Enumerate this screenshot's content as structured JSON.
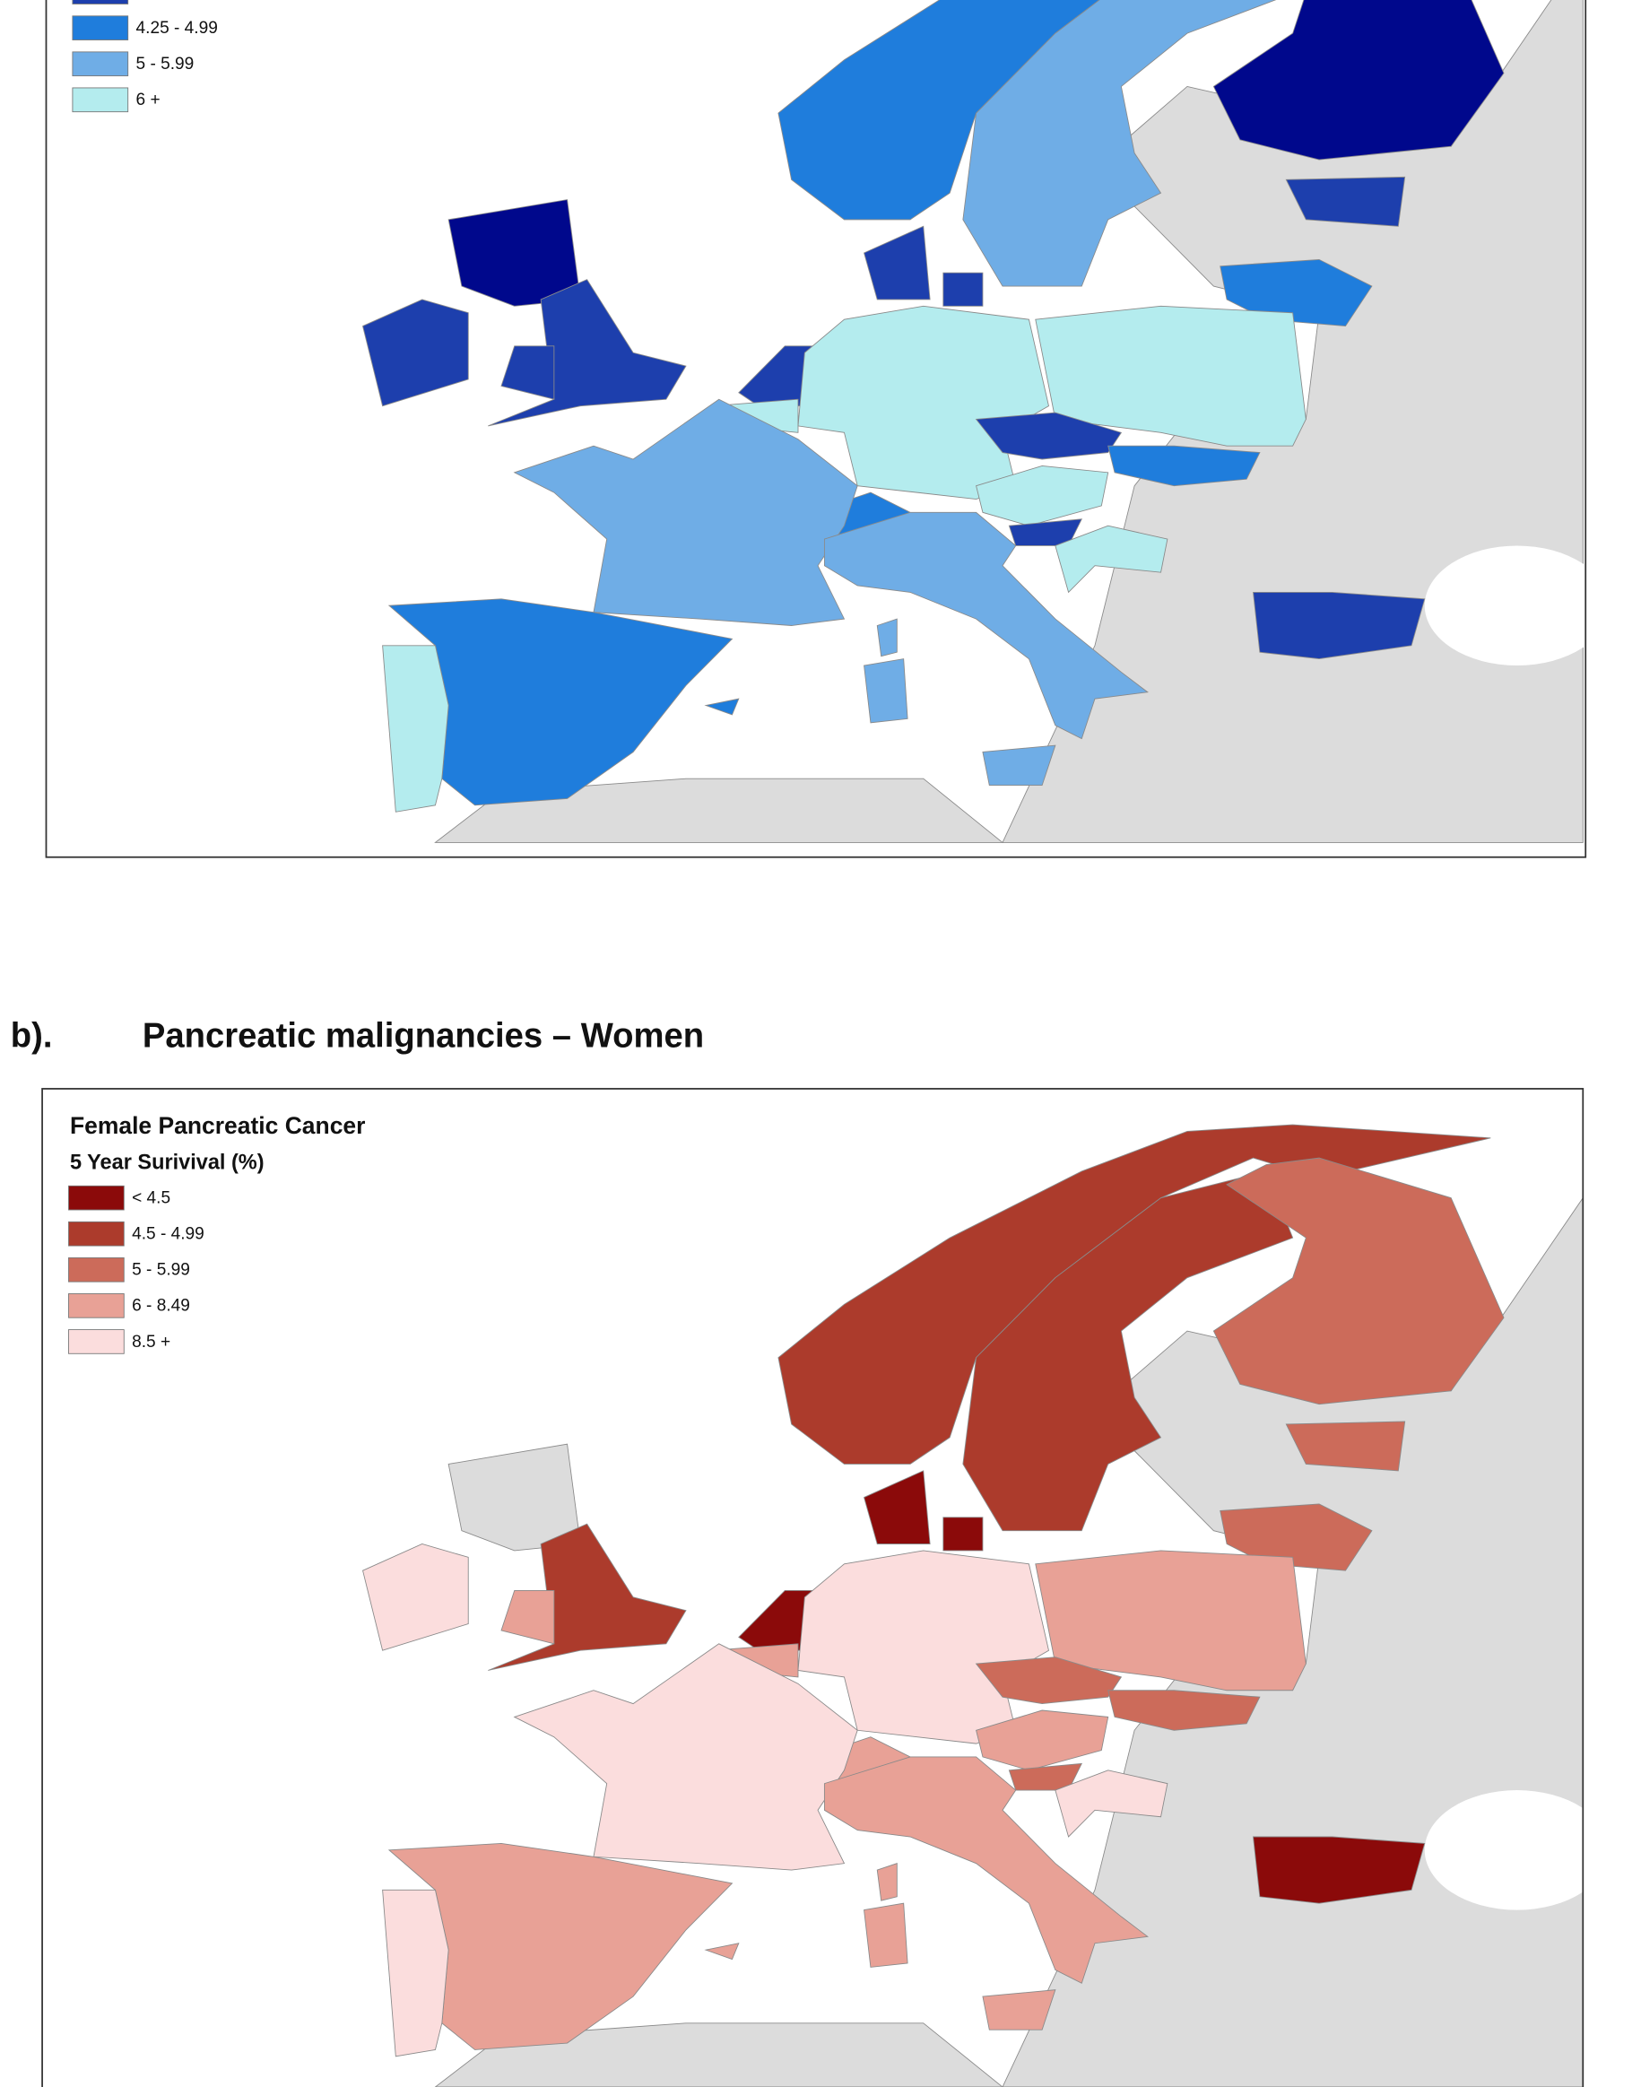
{
  "top_legend": {
    "items": [
      {
        "color": "#1d3fad"
      },
      {
        "label": "4.25 - 4.99",
        "color": "#1f7ddc"
      },
      {
        "label": "5 - 5.99",
        "color": "#6fade6"
      },
      {
        "label": "6 +",
        "color": "#b4ecee"
      }
    ]
  },
  "heading": {
    "number": "b).",
    "title": "Pancreatic malignancies – Women"
  },
  "bottom_legend": {
    "title": "Female Pancreatic Cancer",
    "subtitle": "5 Year Surivival (%)",
    "items": [
      {
        "label": "< 4.5",
        "color": "#8b0a0a"
      },
      {
        "label": "4.5 - 4.99",
        "color": "#ac3b2c"
      },
      {
        "label": "5 - 5.99",
        "color": "#cc6b5a"
      },
      {
        "label": "6 - 8.49",
        "color": "#e8a196"
      },
      {
        "label": "8.5 +",
        "color": "#fbdddd"
      }
    ]
  }
}
